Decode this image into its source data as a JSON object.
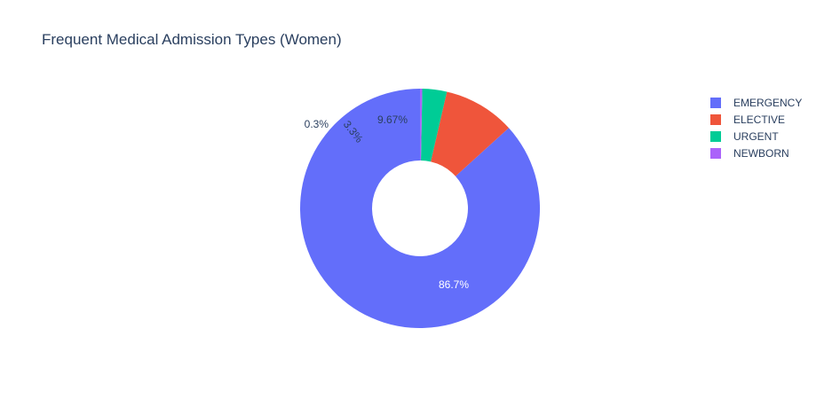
{
  "chart_data": {
    "type": "pie",
    "title": "Frequent Medical Admission Types (Women)",
    "hole": true,
    "categories": [
      "EMERGENCY",
      "ELECTIVE",
      "URGENT",
      "NEWBORN"
    ],
    "values": [
      86.7,
      9.67,
      3.3,
      0.3
    ],
    "labels": [
      "86.7%",
      "9.67%",
      "3.3%",
      "0.3%"
    ],
    "colors": [
      "#636efa",
      "#ef553b",
      "#00cc96",
      "#ab63fa"
    ],
    "legend_position": "top-right",
    "direction": "counterclockwise",
    "start": "top"
  }
}
